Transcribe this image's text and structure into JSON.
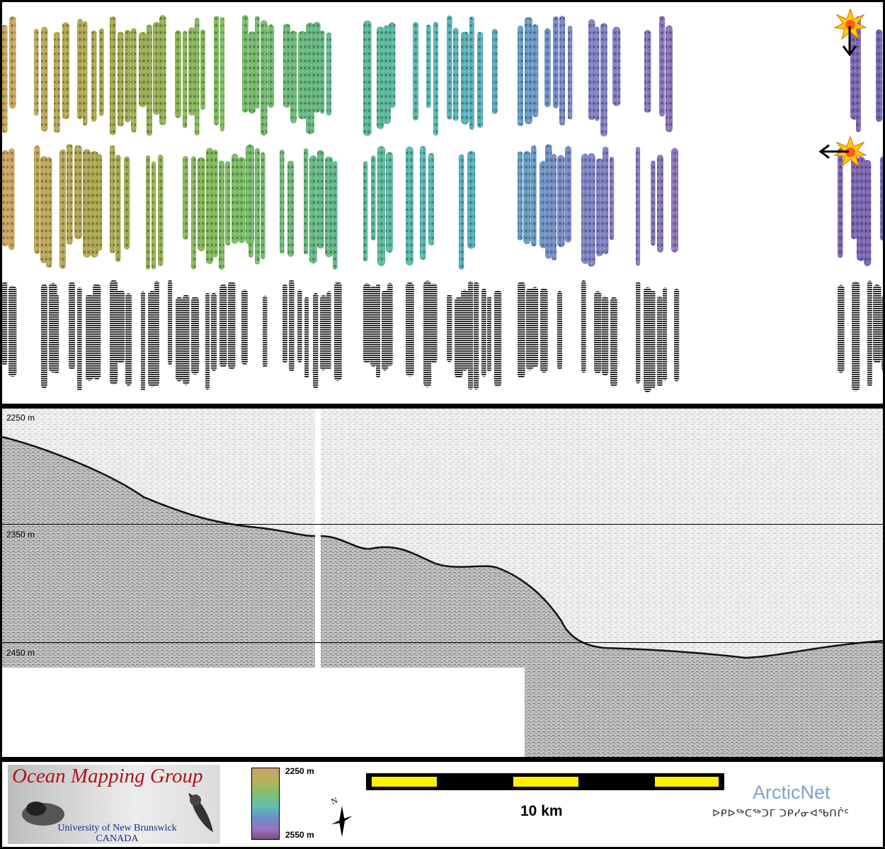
{
  "sonar_profile": {
    "depth_labels": [
      "2250 m",
      "2350 m",
      "2450 m"
    ]
  },
  "legend": {
    "organization": "Ocean Mapping Group",
    "university_line1": "University of New Brunswick",
    "university_line2": "CANADA",
    "colorbar_top": "2250 m",
    "colorbar_bottom": "2550 m",
    "north_label": "N",
    "scale_label": "10 km",
    "partner": "ArcticNet",
    "partner_inuktitut": "ᐅᑭᐅᖅᑕᖅᑐᒥ ᑐᑭᓯᓂᐊᖃᑎᒌᑦ"
  },
  "colors": {
    "scale_yellow": "#ffef00",
    "logo_red": "#b0121a",
    "logo_blue": "#1a2c8a",
    "arcticnet_blue": "#7fa3c8"
  },
  "icons": {
    "sun_marker": "sun-icon",
    "down_arrow": "arrow-down-icon",
    "left_arrow": "arrow-left-icon",
    "north_arrow": "north-arrow-icon"
  }
}
